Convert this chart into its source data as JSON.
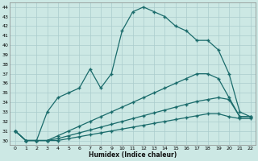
{
  "xlabel": "Humidex (Indice chaleur)",
  "background_color": "#cce8e4",
  "grid_color": "#aacccc",
  "line_color": "#1a6b6b",
  "xlim": [
    -0.5,
    22.5
  ],
  "ylim": [
    29.5,
    44.5
  ],
  "yticks": [
    30,
    31,
    32,
    33,
    34,
    35,
    36,
    37,
    38,
    39,
    40,
    41,
    42,
    43,
    44
  ],
  "xticks": [
    0,
    1,
    2,
    3,
    4,
    5,
    6,
    7,
    8,
    9,
    10,
    11,
    12,
    13,
    14,
    15,
    16,
    17,
    18,
    19,
    20,
    21,
    22
  ],
  "series_main_x": [
    0,
    1,
    2,
    3,
    4,
    5,
    6,
    7,
    8,
    9,
    10,
    11,
    12,
    13,
    14,
    15,
    16,
    17,
    18,
    19,
    20,
    21,
    22
  ],
  "series_main_y": [
    31.0,
    30.0,
    30.0,
    33.0,
    34.5,
    35.0,
    35.5,
    37.5,
    35.5,
    37.0,
    41.5,
    43.5,
    44.0,
    43.5,
    43.0,
    42.0,
    41.5,
    40.5,
    40.5,
    39.5,
    37.0,
    33.0,
    32.5
  ],
  "series2_x": [
    0,
    1,
    2,
    3,
    4,
    5,
    6,
    7,
    8,
    9,
    10,
    11,
    12,
    13,
    14,
    15,
    16,
    17,
    18,
    19,
    20,
    21,
    22
  ],
  "series2_y": [
    31.0,
    30.0,
    30.0,
    30.0,
    30.5,
    31.0,
    31.5,
    32.0,
    32.5,
    33.0,
    33.5,
    34.0,
    34.5,
    35.0,
    35.5,
    36.0,
    36.5,
    37.0,
    37.0,
    36.5,
    34.5,
    32.5,
    32.5
  ],
  "series3_x": [
    0,
    1,
    2,
    3,
    4,
    5,
    6,
    7,
    8,
    9,
    10,
    11,
    12,
    13,
    14,
    15,
    16,
    17,
    18,
    19,
    20,
    21,
    22
  ],
  "series3_y": [
    31.0,
    30.0,
    30.0,
    30.0,
    30.2,
    30.5,
    30.8,
    31.1,
    31.4,
    31.7,
    32.0,
    32.3,
    32.6,
    32.9,
    33.2,
    33.5,
    33.8,
    34.1,
    34.3,
    34.5,
    34.3,
    32.5,
    32.5
  ],
  "series4_x": [
    0,
    1,
    2,
    3,
    4,
    5,
    6,
    7,
    8,
    9,
    10,
    11,
    12,
    13,
    14,
    15,
    16,
    17,
    18,
    19,
    20,
    21,
    22
  ],
  "series4_y": [
    31.0,
    30.0,
    30.0,
    30.0,
    30.0,
    30.2,
    30.4,
    30.6,
    30.8,
    31.0,
    31.2,
    31.4,
    31.6,
    31.8,
    32.0,
    32.2,
    32.4,
    32.6,
    32.8,
    32.8,
    32.5,
    32.3,
    32.3
  ],
  "marker": "+",
  "markersize": 3,
  "linewidth": 0.9
}
